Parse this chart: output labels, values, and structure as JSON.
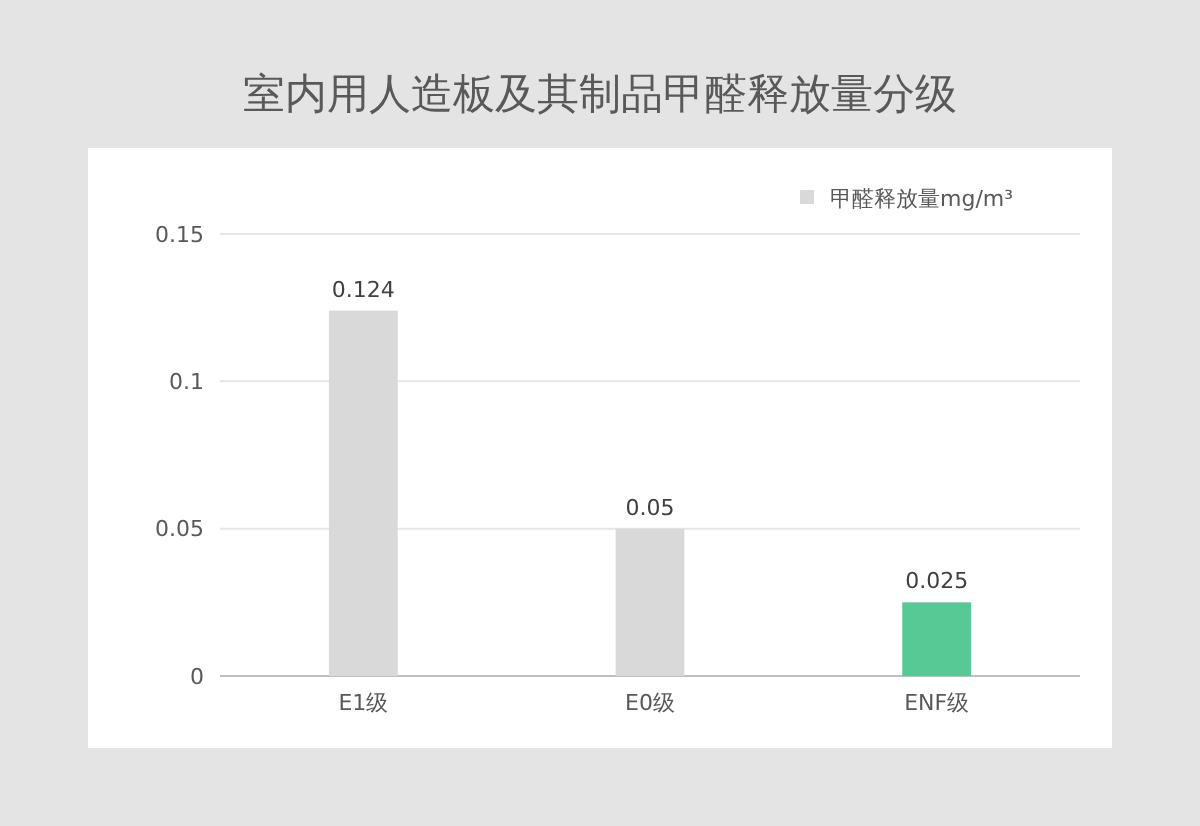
{
  "chart_data": {
    "type": "bar",
    "title": "室内用人造板及其制品甲醛释放量分级",
    "categories": [
      "E1级",
      "E0级",
      "ENF级"
    ],
    "series": [
      {
        "name": "甲醛释放量mg/m³",
        "color": "#d9d9d9",
        "colors": [
          "#d9d9d9",
          "#d9d9d9",
          "#57c994"
        ],
        "values": [
          0.124,
          0.05,
          0.025
        ]
      }
    ],
    "ylim": [
      0,
      0.15
    ],
    "yticks": [
      0,
      0.05,
      0.1,
      0.15
    ],
    "grid": "y",
    "legend": "top right",
    "data_labels": true
  }
}
